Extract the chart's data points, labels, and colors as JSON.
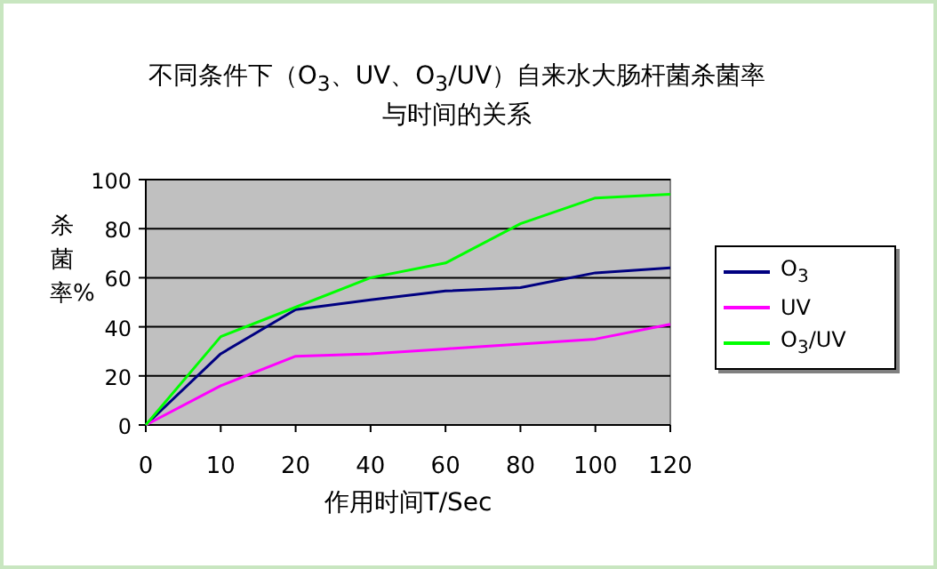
{
  "chart_data": {
    "type": "line",
    "title": "不同条件下（O$_{3}$、UV、O$_{3}$/UV）自来水大肠杆菌杀菌率与时间的关系",
    "xlabel": "作用时间T/Sec",
    "ylabel": "杀菌率%",
    "categories": [
      "0",
      "10",
      "20",
      "40",
      "60",
      "80",
      "100",
      "120"
    ],
    "series": [
      {
        "name": "O$_{3}$",
        "color": "#000080",
        "values": [
          0,
          29,
          47,
          51,
          54.6,
          56,
          62,
          64
        ]
      },
      {
        "name": "UV",
        "color": "#ff00ff",
        "values": [
          0,
          16,
          28,
          29,
          31,
          33,
          35,
          41
        ]
      },
      {
        "name": "O$_{3}$/UV",
        "color": "#00ff00",
        "values": [
          0,
          36,
          48,
          60,
          66,
          82,
          92.5,
          94
        ]
      }
    ],
    "ylim": [
      0,
      100
    ],
    "yticks": [
      0,
      20,
      40,
      60,
      80,
      100
    ],
    "grid": "y",
    "legend": "right"
  }
}
